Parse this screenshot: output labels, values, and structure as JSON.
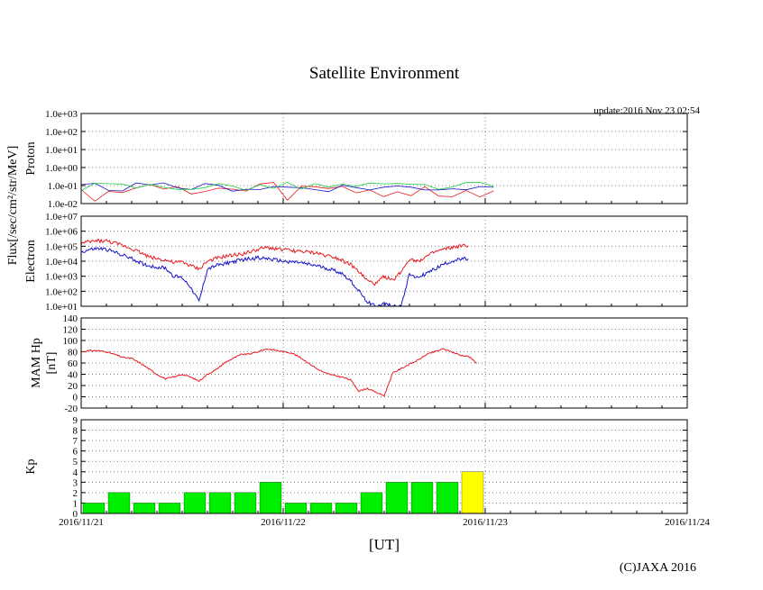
{
  "title": "Satellite Environment",
  "update_label": "update:2016 Nov 23 02:54",
  "copyright": "(C)JAXA 2016",
  "x_axis_label": "[UT]",
  "shared_y_label": "Flux[/sec/cm²/str/MeV]",
  "date_ticks": [
    "2016/11/21",
    "2016/11/22",
    "2016/11/23",
    "2016/11/24"
  ],
  "colors": {
    "red": "#e8191d",
    "blue": "#1414cc",
    "green": "#22cc44",
    "kp_bar": "#00ee00",
    "kp_bar_high": "#ffff00",
    "grid": "#808080"
  },
  "chart_data": [
    {
      "id": "proton",
      "type": "line",
      "ylabel": "Proton",
      "yscale": "log",
      "ylim": [
        0.01,
        1000
      ],
      "yticks": [
        "1.0e-02",
        "1.0e-01",
        "1.0e+00",
        "1.0e+01",
        "1.0e+02",
        "1.0e+03"
      ],
      "xlim": [
        "2016-11-21 00:00",
        "2016-11-24 00:00"
      ],
      "grid": true,
      "series": [
        {
          "color": "red",
          "points": [
            [
              "2016-11-21 00:00",
              0.05
            ],
            [
              "2016-11-23 01:00",
              0.05
            ]
          ]
        },
        {
          "color": "blue",
          "points": [
            [
              "2016-11-21 00:00",
              0.08
            ],
            [
              "2016-11-23 01:00",
              0.08
            ]
          ]
        },
        {
          "color": "green",
          "points": [
            [
              "2016-11-21 00:00",
              0.09
            ],
            [
              "2016-11-23 01:00",
              0.09
            ]
          ]
        }
      ]
    },
    {
      "id": "electron",
      "type": "line",
      "ylabel": "Electron",
      "yscale": "log",
      "ylim": [
        10,
        10000000
      ],
      "yticks": [
        "1.0e+01",
        "1.0e+02",
        "1.0e+03",
        "1.0e+04",
        "1.0e+05",
        "1.0e+06",
        "1.0e+07"
      ],
      "xlim": [
        "2016-11-21 00:00",
        "2016-11-24 00:00"
      ],
      "grid": true,
      "series": [
        {
          "color": "red",
          "points": [
            [
              "2016-11-21 00:00",
              150000
            ],
            [
              "2016-11-21 01:00",
              200000
            ],
            [
              "2016-11-21 02:00",
              230000
            ],
            [
              "2016-11-21 03:00",
              220000
            ],
            [
              "2016-11-21 04:00",
              160000
            ],
            [
              "2016-11-21 05:00",
              110000
            ],
            [
              "2016-11-21 06:00",
              70000
            ],
            [
              "2016-11-21 07:00",
              40000
            ],
            [
              "2016-11-21 08:00",
              20000
            ],
            [
              "2016-11-21 09:00",
              15000
            ],
            [
              "2016-11-21 10:00",
              12000
            ],
            [
              "2016-11-21 11:00",
              8000
            ],
            [
              "2016-11-21 12:00",
              9000
            ],
            [
              "2016-11-21 13:00",
              5000
            ],
            [
              "2016-11-21 14:00",
              3000
            ],
            [
              "2016-11-21 15:00",
              10000
            ],
            [
              "2016-11-21 16:00",
              15000
            ],
            [
              "2016-11-21 17:00",
              20000
            ],
            [
              "2016-11-21 18:00",
              25000
            ],
            [
              "2016-11-21 19:00",
              30000
            ],
            [
              "2016-11-21 20:00",
              40000
            ],
            [
              "2016-11-21 21:00",
              60000
            ],
            [
              "2016-11-21 22:00",
              80000
            ],
            [
              "2016-11-21 23:00",
              70000
            ],
            [
              "2016-11-22 00:00",
              60000
            ],
            [
              "2016-11-22 01:00",
              50000
            ],
            [
              "2016-11-22 02:00",
              45000
            ],
            [
              "2016-11-22 03:00",
              40000
            ],
            [
              "2016-11-22 04:00",
              35000
            ],
            [
              "2016-11-22 05:00",
              25000
            ],
            [
              "2016-11-22 06:00",
              20000
            ],
            [
              "2016-11-22 07:00",
              12000
            ],
            [
              "2016-11-22 08:00",
              6000
            ],
            [
              "2016-11-22 09:00",
              2000
            ],
            [
              "2016-11-22 10:00",
              500
            ],
            [
              "2016-11-22 11:00",
              300
            ],
            [
              "2016-11-22 12:00",
              1000
            ],
            [
              "2016-11-22 13:00",
              500
            ],
            [
              "2016-11-22 14:00",
              2000
            ],
            [
              "2016-11-22 15:00",
              15000
            ],
            [
              "2016-11-22 16:00",
              10000
            ],
            [
              "2016-11-22 17:00",
              20000
            ],
            [
              "2016-11-22 18:00",
              40000
            ],
            [
              "2016-11-22 19:00",
              60000
            ],
            [
              "2016-11-22 20:00",
              80000
            ],
            [
              "2016-11-22 21:00",
              100000
            ],
            [
              "2016-11-22 22:00",
              110000
            ]
          ]
        },
        {
          "color": "blue",
          "points": [
            [
              "2016-11-21 00:00",
              40000
            ],
            [
              "2016-11-21 01:00",
              60000
            ],
            [
              "2016-11-21 02:00",
              70000
            ],
            [
              "2016-11-21 03:00",
              60000
            ],
            [
              "2016-11-21 04:00",
              40000
            ],
            [
              "2016-11-21 05:00",
              25000
            ],
            [
              "2016-11-21 06:00",
              15000
            ],
            [
              "2016-11-21 07:00",
              8000
            ],
            [
              "2016-11-21 08:00",
              5000
            ],
            [
              "2016-11-21 09:00",
              4000
            ],
            [
              "2016-11-21 10:00",
              3500
            ],
            [
              "2016-11-21 11:00",
              1000
            ],
            [
              "2016-11-21 12:00",
              800
            ],
            [
              "2016-11-21 13:00",
              200
            ],
            [
              "2016-11-21 14:00",
              20
            ],
            [
              "2016-11-21 15:00",
              3000
            ],
            [
              "2016-11-21 16:00",
              5000
            ],
            [
              "2016-11-21 17:00",
              7000
            ],
            [
              "2016-11-21 18:00",
              9000
            ],
            [
              "2016-11-21 19:00",
              12000
            ],
            [
              "2016-11-21 20:00",
              15000
            ],
            [
              "2016-11-21 21:00",
              17000
            ],
            [
              "2016-11-21 22:00",
              15000
            ],
            [
              "2016-11-21 23:00",
              12000
            ],
            [
              "2016-11-22 00:00",
              10000
            ],
            [
              "2016-11-22 01:00",
              9000
            ],
            [
              "2016-11-22 02:00",
              8000
            ],
            [
              "2016-11-22 03:00",
              6000
            ],
            [
              "2016-11-22 04:00",
              5000
            ],
            [
              "2016-11-22 05:00",
              3500
            ],
            [
              "2016-11-22 06:00",
              2500
            ],
            [
              "2016-11-22 07:00",
              1500
            ],
            [
              "2016-11-22 08:00",
              500
            ],
            [
              "2016-11-22 09:00",
              100
            ],
            [
              "2016-11-22 10:00",
              20
            ],
            [
              "2016-11-22 11:00",
              10
            ],
            [
              "2016-11-22 12:00",
              15
            ],
            [
              "2016-11-22 13:00",
              10
            ],
            [
              "2016-11-22 14:00",
              10
            ],
            [
              "2016-11-22 15:00",
              1500
            ],
            [
              "2016-11-22 16:00",
              800
            ],
            [
              "2016-11-22 17:00",
              1500
            ],
            [
              "2016-11-22 18:00",
              3000
            ],
            [
              "2016-11-22 19:00",
              6000
            ],
            [
              "2016-11-22 20:00",
              10000
            ],
            [
              "2016-11-22 21:00",
              13000
            ],
            [
              "2016-11-22 22:00",
              14000
            ]
          ]
        }
      ]
    },
    {
      "id": "hp",
      "type": "line",
      "ylabel": "MAM Hp",
      "ylabel2": "[nT]",
      "yscale": "linear",
      "ylim": [
        -20,
        140
      ],
      "yticks": [
        "-20",
        "0",
        "20",
        "40",
        "60",
        "80",
        "100",
        "120",
        "140"
      ],
      "xlim": [
        "2016-11-21 00:00",
        "2016-11-24 00:00"
      ],
      "grid": true,
      "series": [
        {
          "color": "red",
          "points": [
            [
              "2016-11-21 00:00",
              80
            ],
            [
              "2016-11-21 01:00",
              82
            ],
            [
              "2016-11-21 02:00",
              82
            ],
            [
              "2016-11-21 03:00",
              80
            ],
            [
              "2016-11-21 04:00",
              75
            ],
            [
              "2016-11-21 05:00",
              70
            ],
            [
              "2016-11-21 06:00",
              68
            ],
            [
              "2016-11-21 07:00",
              60
            ],
            [
              "2016-11-21 08:00",
              50
            ],
            [
              "2016-11-21 09:00",
              40
            ],
            [
              "2016-11-21 10:00",
              32
            ],
            [
              "2016-11-21 11:00",
              35
            ],
            [
              "2016-11-21 12:00",
              40
            ],
            [
              "2016-11-21 13:00",
              35
            ],
            [
              "2016-11-21 14:00",
              28
            ],
            [
              "2016-11-21 15:00",
              40
            ],
            [
              "2016-11-21 16:00",
              48
            ],
            [
              "2016-11-21 17:00",
              60
            ],
            [
              "2016-11-21 18:00",
              68
            ],
            [
              "2016-11-21 19:00",
              75
            ],
            [
              "2016-11-21 20:00",
              76
            ],
            [
              "2016-11-21 21:00",
              80
            ],
            [
              "2016-11-21 22:00",
              85
            ],
            [
              "2016-11-21 23:00",
              83
            ],
            [
              "2016-11-22 00:00",
              80
            ],
            [
              "2016-11-22 01:00",
              78
            ],
            [
              "2016-11-22 02:00",
              70
            ],
            [
              "2016-11-22 03:00",
              60
            ],
            [
              "2016-11-22 04:00",
              50
            ],
            [
              "2016-11-22 05:00",
              42
            ],
            [
              "2016-11-22 06:00",
              38
            ],
            [
              "2016-11-22 07:00",
              35
            ],
            [
              "2016-11-22 08:00",
              30
            ],
            [
              "2016-11-22 09:00",
              10
            ],
            [
              "2016-11-22 10:00",
              15
            ],
            [
              "2016-11-22 11:00",
              8
            ],
            [
              "2016-11-22 12:00",
              2
            ],
            [
              "2016-11-22 13:00",
              42
            ],
            [
              "2016-11-22 14:00",
              50
            ],
            [
              "2016-11-22 15:00",
              58
            ],
            [
              "2016-11-22 16:00",
              65
            ],
            [
              "2016-11-22 17:00",
              75
            ],
            [
              "2016-11-22 18:00",
              80
            ],
            [
              "2016-11-22 19:00",
              85
            ],
            [
              "2016-11-22 20:00",
              80
            ],
            [
              "2016-11-22 21:00",
              74
            ],
            [
              "2016-11-22 22:00",
              72
            ],
            [
              "2016-11-22 23:00",
              60
            ]
          ]
        }
      ]
    },
    {
      "id": "kp",
      "type": "bar",
      "ylabel": "Kp",
      "yscale": "linear",
      "ylim": [
        0,
        9
      ],
      "yticks": [
        "0",
        "1",
        "2",
        "3",
        "4",
        "5",
        "6",
        "7",
        "8",
        "9"
      ],
      "xlim": [
        "2016-11-21 00:00",
        "2016-11-24 00:00"
      ],
      "grid": true,
      "interval_hours": 3,
      "values": [
        1,
        2,
        1,
        1,
        2,
        2,
        2,
        3,
        1,
        1,
        1,
        2,
        3,
        3,
        3,
        4
      ],
      "high_threshold": 4
    }
  ]
}
